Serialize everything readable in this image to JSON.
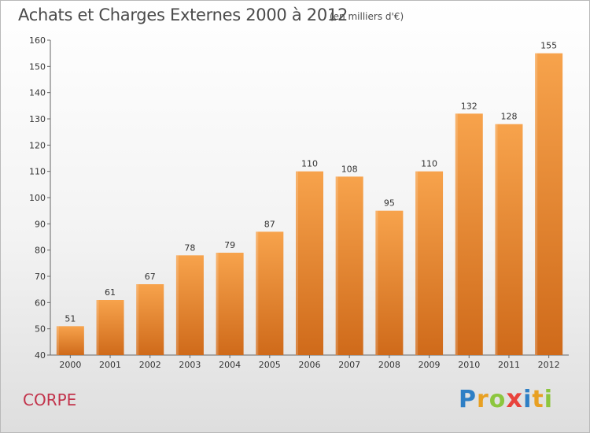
{
  "chart_data": {
    "type": "bar",
    "title": "Achats et Charges Externes 2000 à 2012",
    "subtitle": "(en milliers d'€)",
    "categories": [
      "2000",
      "2001",
      "2002",
      "2003",
      "2004",
      "2005",
      "2006",
      "2007",
      "2008",
      "2009",
      "2010",
      "2011",
      "2012"
    ],
    "values": [
      51,
      61,
      67,
      78,
      79,
      87,
      110,
      108,
      95,
      110,
      132,
      128,
      155
    ],
    "ylim": [
      40,
      160
    ],
    "yticks": [
      40,
      50,
      60,
      70,
      80,
      90,
      100,
      110,
      120,
      130,
      140,
      150,
      160
    ],
    "xlabel": "",
    "ylabel": "",
    "grid": false,
    "legend": "none",
    "bar_color_top": "#f7a34c",
    "bar_color_bottom": "#cf6a1a"
  },
  "footer": {
    "commune": "CORPE",
    "logo_letters": [
      {
        "ch": "P",
        "color": "#2e7fc5"
      },
      {
        "ch": "r",
        "color": "#e8a022"
      },
      {
        "ch": "o",
        "color": "#8cc63e"
      },
      {
        "ch": "x",
        "color": "#e8433c"
      },
      {
        "ch": "i",
        "color": "#2e7fc5"
      },
      {
        "ch": "t",
        "color": "#e8a022"
      },
      {
        "ch": "i",
        "color": "#8cc63e"
      }
    ]
  }
}
